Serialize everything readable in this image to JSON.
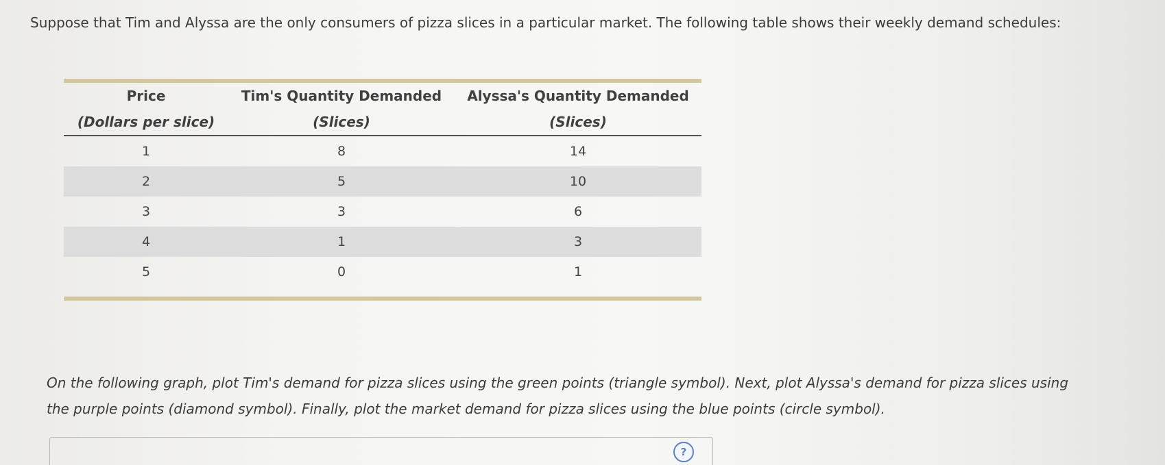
{
  "intro_text": "Suppose that Tim and Alyssa are the only consumers of pizza slices in a particular market. The following table shows their weekly demand schedules:",
  "table": {
    "headers": {
      "price": "Price",
      "price_unit": "(Dollars per slice)",
      "tim": "Tim's Quantity Demanded",
      "tim_unit": "(Slices)",
      "alyssa": "Alyssa's Quantity Demanded",
      "alyssa_unit": "(Slices)"
    },
    "rows": [
      {
        "price": "1",
        "tim": "8",
        "alyssa": "14"
      },
      {
        "price": "2",
        "tim": "5",
        "alyssa": "10"
      },
      {
        "price": "3",
        "tim": "3",
        "alyssa": "6"
      },
      {
        "price": "4",
        "tim": "1",
        "alyssa": "3"
      },
      {
        "price": "5",
        "tim": "0",
        "alyssa": "1"
      }
    ]
  },
  "instructions": "On the following graph, plot Tim's demand for pizza slices using the green points (triangle symbol). Next, plot Alyssa's demand for pizza slices using the purple points (diamond symbol). Finally, plot the market demand for pizza slices using the blue points (circle symbol).",
  "help_icon": {
    "icon": "help-icon",
    "glyph": "?"
  },
  "colors": {
    "table_rule": "#d3c79d",
    "row_shade": "#dcdcdc",
    "help_accent": "#5b82c4"
  }
}
